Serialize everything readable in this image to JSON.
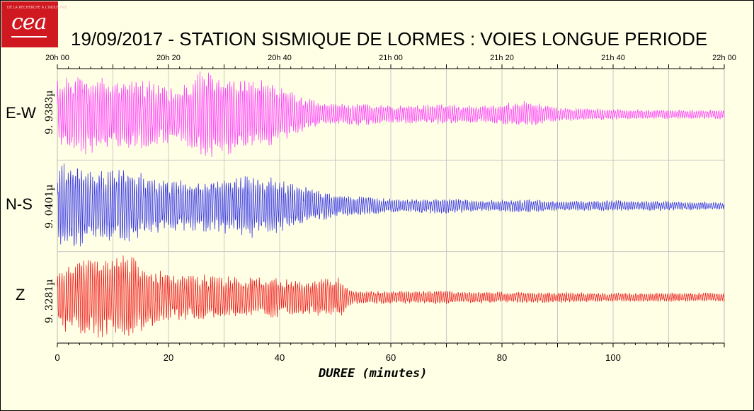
{
  "logo": {
    "text": "cea",
    "small_text": "DE LA RECHERCHE À L'INDUSTRIE"
  },
  "chart_data": {
    "type": "line",
    "title": "19/09/2017  -  STATION SISMIQUE DE LORMES : VOIES LONGUE PERIODE",
    "xlabel": "DUREE (minutes)",
    "xlim": [
      0,
      120
    ],
    "x_ticks": [
      "0",
      "20",
      "40",
      "60",
      "80",
      "100"
    ],
    "top_ticks": [
      "20h 00",
      "20h 20",
      "20h 40",
      "21h 00",
      "21h 20",
      "21h 40",
      "22h 00"
    ],
    "grid": true,
    "series": [
      {
        "name": "E-W",
        "scale": "9. 9383µ",
        "color": "#ff40ff",
        "envelope": [
          [
            0,
            0.75
          ],
          [
            4,
            0.9
          ],
          [
            8,
            0.85
          ],
          [
            12,
            0.8
          ],
          [
            18,
            0.75
          ],
          [
            22,
            0.55
          ],
          [
            25,
            0.95
          ],
          [
            28,
            1.0
          ],
          [
            33,
            0.8
          ],
          [
            38,
            0.75
          ],
          [
            44,
            0.4
          ],
          [
            48,
            0.25
          ],
          [
            55,
            0.25
          ],
          [
            60,
            0.2
          ],
          [
            70,
            0.22
          ],
          [
            76,
            0.18
          ],
          [
            84,
            0.3
          ],
          [
            90,
            0.15
          ],
          [
            100,
            0.12
          ],
          [
            110,
            0.1
          ],
          [
            120,
            0.1
          ]
        ]
      },
      {
        "name": "N-S",
        "scale": "9. 0401µ",
        "color": "#3838e8",
        "envelope": [
          [
            0,
            0.9
          ],
          [
            2,
            1.0
          ],
          [
            6,
            0.8
          ],
          [
            12,
            0.85
          ],
          [
            18,
            0.6
          ],
          [
            24,
            0.55
          ],
          [
            30,
            0.6
          ],
          [
            35,
            0.7
          ],
          [
            40,
            0.6
          ],
          [
            45,
            0.4
          ],
          [
            50,
            0.25
          ],
          [
            56,
            0.2
          ],
          [
            62,
            0.15
          ],
          [
            70,
            0.18
          ],
          [
            76,
            0.12
          ],
          [
            85,
            0.15
          ],
          [
            90,
            0.1
          ],
          [
            100,
            0.12
          ],
          [
            110,
            0.1
          ],
          [
            120,
            0.08
          ]
        ]
      },
      {
        "name": "Z",
        "scale": "9. 3281µ",
        "color": "#f02020",
        "envelope": [
          [
            0,
            0.8
          ],
          [
            3,
            0.75
          ],
          [
            6,
            0.9
          ],
          [
            10,
            0.85
          ],
          [
            13,
            1.0
          ],
          [
            16,
            0.7
          ],
          [
            20,
            0.55
          ],
          [
            26,
            0.5
          ],
          [
            32,
            0.45
          ],
          [
            38,
            0.45
          ],
          [
            45,
            0.4
          ],
          [
            51,
            0.45
          ],
          [
            53,
            0.15
          ],
          [
            60,
            0.15
          ],
          [
            70,
            0.15
          ],
          [
            80,
            0.12
          ],
          [
            90,
            0.12
          ],
          [
            100,
            0.1
          ],
          [
            110,
            0.1
          ],
          [
            120,
            0.1
          ]
        ]
      }
    ]
  }
}
